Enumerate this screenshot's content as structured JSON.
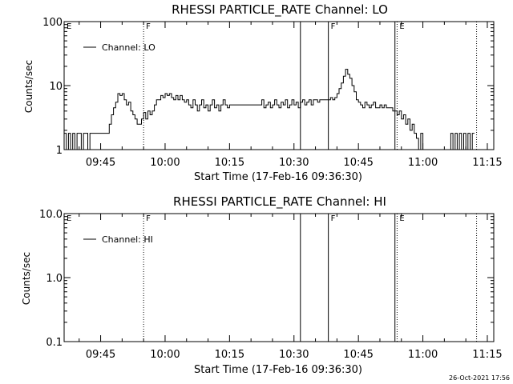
{
  "footer": {
    "timestamp": "26-Oct-2021 17:56"
  },
  "chart_data": [
    {
      "type": "line",
      "title": "RHESSI PARTICLE_RATE Channel: LO",
      "xlabel": "Start Time (17-Feb-16 09:36:30)",
      "ylabel": "Counts/sec",
      "yscale": "log",
      "ylim": [
        1,
        100
      ],
      "yticks": [
        1,
        10,
        100
      ],
      "ytick_labels": [
        "1",
        "10",
        "100"
      ],
      "xlim": [
        "09:36:30",
        "11:16:30"
      ],
      "xticks": [
        "09:45",
        "10:00",
        "10:15",
        "10:30",
        "10:45",
        "11:00",
        "11:15"
      ],
      "legend": {
        "label": "Channel: LO",
        "position": "top-left"
      },
      "markers": [
        {
          "time": "09:36:30",
          "label": "E",
          "style": "solid"
        },
        {
          "time": "09:55:00",
          "label": "F",
          "style": "dotted"
        },
        {
          "time": "10:31:30",
          "label": "",
          "style": "solid"
        },
        {
          "time": "10:38:00",
          "label": "F",
          "style": "solid"
        },
        {
          "time": "10:53:30",
          "label": "",
          "style": "solid"
        },
        {
          "time": "10:54:00",
          "label": "E",
          "style": "dotted"
        },
        {
          "time": "11:12:30",
          "label": "",
          "style": "dotted"
        }
      ],
      "series": [
        {
          "name": "Channel: LO",
          "points": [
            [
              "09:36:30",
              1.8
            ],
            [
              "09:37:00",
              1
            ],
            [
              "09:37:30",
              1.8
            ],
            [
              "09:38:00",
              1
            ],
            [
              "09:38:30",
              1.8
            ],
            [
              "09:39:00",
              1
            ],
            [
              "09:39:30",
              1.8
            ],
            [
              "09:40:00",
              1.8
            ],
            [
              "09:40:30",
              1
            ],
            [
              "09:41:00",
              1.8
            ],
            [
              "09:41:30",
              1.8
            ],
            [
              "09:42:00",
              1
            ],
            [
              "09:42:30",
              1.8
            ],
            [
              "09:43:00",
              1.8
            ],
            [
              "09:44:00",
              1.8
            ],
            [
              "09:45:00",
              1.8
            ],
            [
              "09:46:00",
              1.8
            ],
            [
              "09:47:00",
              2.5
            ],
            [
              "09:47:30",
              3.5
            ],
            [
              "09:48:00",
              4.5
            ],
            [
              "09:48:30",
              5.5
            ],
            [
              "09:49:00",
              7.5
            ],
            [
              "09:49:30",
              7
            ],
            [
              "09:50:00",
              7.5
            ],
            [
              "09:50:30",
              6
            ],
            [
              "09:51:00",
              5
            ],
            [
              "09:51:30",
              5.5
            ],
            [
              "09:52:00",
              4
            ],
            [
              "09:52:30",
              3.5
            ],
            [
              "09:53:00",
              3
            ],
            [
              "09:53:30",
              2.5
            ],
            [
              "09:54:00",
              2.5
            ],
            [
              "09:54:30",
              3
            ],
            [
              "09:55:00",
              3.8
            ],
            [
              "09:55:30",
              3
            ],
            [
              "09:56:00",
              4
            ],
            [
              "09:56:30",
              3.5
            ],
            [
              "09:57:00",
              4
            ],
            [
              "09:57:30",
              5
            ],
            [
              "09:58:00",
              6
            ],
            [
              "09:58:30",
              6
            ],
            [
              "09:59:00",
              7
            ],
            [
              "09:59:30",
              6.5
            ],
            [
              "10:00:00",
              7.5
            ],
            [
              "10:00:30",
              7
            ],
            [
              "10:01:00",
              7.5
            ],
            [
              "10:01:30",
              6.5
            ],
            [
              "10:02:00",
              6
            ],
            [
              "10:02:30",
              7
            ],
            [
              "10:03:00",
              6
            ],
            [
              "10:03:30",
              7
            ],
            [
              "10:04:00",
              6
            ],
            [
              "10:04:30",
              5.5
            ],
            [
              "10:05:00",
              6
            ],
            [
              "10:05:30",
              5
            ],
            [
              "10:06:00",
              4.5
            ],
            [
              "10:06:30",
              6
            ],
            [
              "10:07:00",
              5
            ],
            [
              "10:07:30",
              4
            ],
            [
              "10:08:00",
              5
            ],
            [
              "10:08:30",
              6
            ],
            [
              "10:09:00",
              4.5
            ],
            [
              "10:09:30",
              5
            ],
            [
              "10:10:00",
              4
            ],
            [
              "10:10:30",
              5
            ],
            [
              "10:11:00",
              6
            ],
            [
              "10:11:30",
              4.5
            ],
            [
              "10:12:00",
              5
            ],
            [
              "10:12:30",
              4
            ],
            [
              "10:13:00",
              5
            ],
            [
              "10:13:30",
              6
            ],
            [
              "10:14:00",
              5
            ],
            [
              "10:14:30",
              4.5
            ],
            [
              "10:15:00",
              5
            ],
            [
              "10:15:30",
              5
            ],
            [
              "10:16:00",
              5
            ],
            [
              "10:17:00",
              5
            ],
            [
              "10:18:00",
              5
            ],
            [
              "10:19:00",
              5
            ],
            [
              "10:20:00",
              5
            ],
            [
              "10:21:00",
              5
            ],
            [
              "10:22:00",
              5
            ],
            [
              "10:22:30",
              6
            ],
            [
              "10:23:00",
              4.5
            ],
            [
              "10:23:30",
              5
            ],
            [
              "10:24:00",
              5.5
            ],
            [
              "10:24:30",
              4.5
            ],
            [
              "10:25:00",
              5
            ],
            [
              "10:25:30",
              6
            ],
            [
              "10:26:00",
              5
            ],
            [
              "10:26:30",
              4.5
            ],
            [
              "10:27:00",
              5.5
            ],
            [
              "10:27:30",
              5
            ],
            [
              "10:28:00",
              6
            ],
            [
              "10:28:30",
              4.5
            ],
            [
              "10:29:00",
              5
            ],
            [
              "10:29:30",
              6
            ],
            [
              "10:30:00",
              5
            ],
            [
              "10:30:30",
              5.5
            ],
            [
              "10:31:00",
              4.5
            ],
            [
              "10:31:30",
              5.5
            ],
            [
              "10:32:00",
              6
            ],
            [
              "10:32:30",
              5
            ],
            [
              "10:33:00",
              5.5
            ],
            [
              "10:33:30",
              6
            ],
            [
              "10:34:00",
              5
            ],
            [
              "10:34:30",
              6
            ],
            [
              "10:35:00",
              6
            ],
            [
              "10:35:30",
              5.5
            ],
            [
              "10:36:00",
              6
            ],
            [
              "10:36:30",
              6
            ],
            [
              "10:37:00",
              6
            ],
            [
              "10:37:30",
              6
            ],
            [
              "10:38:00",
              6
            ],
            [
              "10:38:30",
              6.5
            ],
            [
              "10:39:00",
              6
            ],
            [
              "10:39:30",
              6.5
            ],
            [
              "10:40:00",
              7.5
            ],
            [
              "10:40:30",
              9
            ],
            [
              "10:41:00",
              11
            ],
            [
              "10:41:30",
              14
            ],
            [
              "10:42:00",
              18
            ],
            [
              "10:42:30",
              15
            ],
            [
              "10:43:00",
              13
            ],
            [
              "10:43:30",
              10
            ],
            [
              "10:44:00",
              8
            ],
            [
              "10:44:30",
              6
            ],
            [
              "10:45:00",
              5.5
            ],
            [
              "10:45:30",
              5
            ],
            [
              "10:46:00",
              4.5
            ],
            [
              "10:46:30",
              5.5
            ],
            [
              "10:47:00",
              5
            ],
            [
              "10:47:30",
              4.5
            ],
            [
              "10:48:00",
              5
            ],
            [
              "10:48:30",
              5.5
            ],
            [
              "10:49:00",
              4.5
            ],
            [
              "10:49:30",
              4.5
            ],
            [
              "10:50:00",
              5
            ],
            [
              "10:50:30",
              4.5
            ],
            [
              "10:51:00",
              5
            ],
            [
              "10:51:30",
              4.5
            ],
            [
              "10:52:00",
              4.5
            ],
            [
              "10:52:30",
              4.5
            ],
            [
              "10:53:00",
              4
            ],
            [
              "10:53:30",
              4
            ],
            [
              "10:54:00",
              3.5
            ],
            [
              "10:54:30",
              4
            ],
            [
              "10:55:00",
              3
            ],
            [
              "10:55:30",
              3.5
            ],
            [
              "10:56:00",
              2.5
            ],
            [
              "10:56:30",
              3
            ],
            [
              "10:57:00",
              2
            ],
            [
              "10:57:30",
              2.5
            ],
            [
              "10:58:00",
              1.8
            ],
            [
              "10:58:30",
              1.5
            ],
            [
              "10:59:00",
              1
            ],
            [
              "10:59:30",
              1.8
            ],
            [
              "11:00:00",
              1
            ],
            [
              "11:06:00",
              1
            ],
            [
              "11:06:30",
              1.8
            ],
            [
              "11:07:00",
              1
            ],
            [
              "11:07:30",
              1.8
            ],
            [
              "11:08:00",
              1
            ],
            [
              "11:08:30",
              1.8
            ],
            [
              "11:09:00",
              1
            ],
            [
              "11:09:30",
              1.8
            ],
            [
              "11:10:00",
              1
            ],
            [
              "11:10:30",
              1.8
            ],
            [
              "11:11:00",
              1
            ],
            [
              "11:11:30",
              1.8
            ],
            [
              "11:12:00",
              1.8
            ]
          ]
        }
      ]
    },
    {
      "type": "line",
      "title": "RHESSI PARTICLE_RATE Channel: HI",
      "xlabel": "Start Time (17-Feb-16 09:36:30)",
      "ylabel": "Counts/sec",
      "yscale": "log",
      "ylim": [
        0.1,
        10
      ],
      "yticks": [
        0.1,
        1,
        10
      ],
      "ytick_labels": [
        "0.1",
        "1.0",
        "10.0"
      ],
      "xlim": [
        "09:36:30",
        "11:16:30"
      ],
      "xticks": [
        "09:45",
        "10:00",
        "10:15",
        "10:30",
        "10:45",
        "11:00",
        "11:15"
      ],
      "legend": {
        "label": "Channel: HI",
        "position": "top-left"
      },
      "markers": [
        {
          "time": "09:36:30",
          "label": "E",
          "style": "solid"
        },
        {
          "time": "09:55:00",
          "label": "F",
          "style": "dotted"
        },
        {
          "time": "10:31:30",
          "label": "",
          "style": "solid"
        },
        {
          "time": "10:38:00",
          "label": "F",
          "style": "solid"
        },
        {
          "time": "10:53:30",
          "label": "",
          "style": "solid"
        },
        {
          "time": "10:54:00",
          "label": "E",
          "style": "dotted"
        },
        {
          "time": "11:12:30",
          "label": "",
          "style": "dotted"
        }
      ],
      "series": [
        {
          "name": "Channel: HI",
          "points": []
        }
      ]
    }
  ]
}
